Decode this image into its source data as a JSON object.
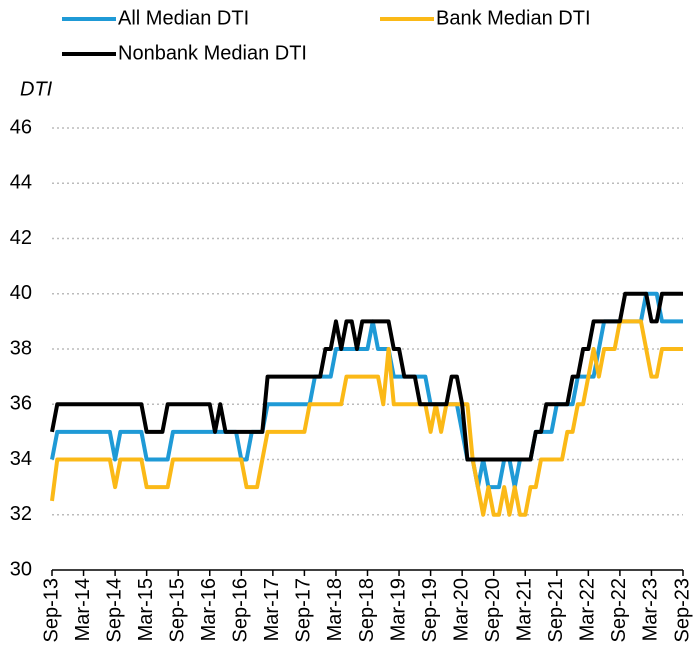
{
  "chart_data": {
    "type": "line",
    "y_axis_label": "DTI",
    "categories": [
      "Sep-13",
      null,
      null,
      null,
      null,
      null,
      "Mar-14",
      null,
      null,
      null,
      null,
      null,
      "Sep-14",
      null,
      null,
      null,
      null,
      null,
      "Mar-15",
      null,
      null,
      null,
      null,
      null,
      "Sep-15",
      null,
      null,
      null,
      null,
      null,
      "Mar-16",
      null,
      null,
      null,
      null,
      null,
      "Sep-16",
      null,
      null,
      null,
      null,
      null,
      "Mar-17",
      null,
      null,
      null,
      null,
      null,
      "Sep-17",
      null,
      null,
      null,
      null,
      null,
      "Mar-18",
      null,
      null,
      null,
      null,
      null,
      "Sep-18",
      null,
      null,
      null,
      null,
      null,
      "Mar-19",
      null,
      null,
      null,
      null,
      null,
      "Sep-19",
      null,
      null,
      null,
      null,
      null,
      "Mar-20",
      null,
      null,
      null,
      null,
      null,
      "Sep-20",
      null,
      null,
      null,
      null,
      null,
      "Mar-21",
      null,
      null,
      null,
      null,
      null,
      "Sep-21",
      null,
      null,
      null,
      null,
      null,
      "Mar-22",
      null,
      null,
      null,
      null,
      null,
      "Sep-22",
      null,
      null,
      null,
      null,
      null,
      "Mar-23",
      null,
      null,
      null,
      null,
      null,
      "Sep-23"
    ],
    "series": [
      {
        "name": "All Median DTI",
        "color": "#1f9ad6",
        "values": [
          34,
          35,
          35,
          35,
          35,
          35,
          35,
          35,
          35,
          35,
          35,
          35,
          34,
          35,
          35,
          35,
          35,
          35,
          34,
          34,
          34,
          34,
          34,
          35,
          35,
          35,
          35,
          35,
          35,
          35,
          35,
          35,
          35,
          35,
          35,
          35,
          34,
          34,
          35,
          35,
          35,
          36,
          36,
          36,
          36,
          36,
          36,
          36,
          36,
          36,
          37,
          37,
          37,
          37,
          38,
          38,
          38,
          38,
          38,
          38,
          38,
          39,
          38,
          38,
          38,
          37,
          37,
          37,
          37,
          37,
          37,
          37,
          36,
          36,
          36,
          36,
          36,
          36,
          35,
          34,
          34,
          33,
          34,
          33,
          33,
          33,
          34,
          34,
          33,
          34,
          34,
          34,
          35,
          35,
          35,
          35,
          36,
          36,
          36,
          36,
          37,
          37,
          37,
          37,
          38,
          39,
          39,
          39,
          39,
          39,
          39,
          39,
          39,
          40,
          40,
          40,
          39,
          39,
          39,
          39,
          39
        ]
      },
      {
        "name": "Bank Median DTI",
        "color": "#fbb917",
        "values": [
          32.5,
          34,
          34,
          34,
          34,
          34,
          34,
          34,
          34,
          34,
          34,
          34,
          33,
          34,
          34,
          34,
          34,
          34,
          33,
          33,
          33,
          33,
          33,
          34,
          34,
          34,
          34,
          34,
          34,
          34,
          34,
          34,
          34,
          34,
          34,
          34,
          34,
          33,
          33,
          33,
          34,
          35,
          35,
          35,
          35,
          35,
          35,
          35,
          35,
          36,
          36,
          36,
          36,
          36,
          36,
          36,
          37,
          37,
          37,
          37,
          37,
          37,
          37,
          36,
          38,
          36,
          36,
          36,
          36,
          36,
          36,
          36,
          35,
          36,
          35,
          36,
          36,
          36,
          36,
          36,
          34,
          33,
          32,
          33,
          32,
          32,
          33,
          32,
          33,
          32,
          32,
          33,
          33,
          34,
          34,
          34,
          34,
          34,
          35,
          35,
          36,
          36,
          37,
          38,
          37,
          38,
          38,
          38,
          39,
          39,
          39,
          39,
          39,
          38,
          37,
          37,
          38,
          38,
          38,
          38,
          38
        ]
      },
      {
        "name": "Nonbank Median DTI",
        "color": "#000000",
        "values": [
          35,
          36,
          36,
          36,
          36,
          36,
          36,
          36,
          36,
          36,
          36,
          36,
          36,
          36,
          36,
          36,
          36,
          36,
          35,
          35,
          35,
          35,
          36,
          36,
          36,
          36,
          36,
          36,
          36,
          36,
          36,
          35,
          36,
          35,
          35,
          35,
          35,
          35,
          35,
          35,
          35,
          37,
          37,
          37,
          37,
          37,
          37,
          37,
          37,
          37,
          37,
          37,
          38,
          38,
          39,
          38,
          39,
          39,
          38,
          39,
          39,
          39,
          39,
          39,
          39,
          38,
          38,
          37,
          37,
          37,
          36,
          36,
          36,
          36,
          36,
          36,
          37,
          37,
          36,
          34,
          34,
          34,
          34,
          34,
          34,
          34,
          34,
          34,
          34,
          34,
          34,
          34,
          35,
          35,
          36,
          36,
          36,
          36,
          36,
          37,
          37,
          38,
          38,
          39,
          39,
          39,
          39,
          39,
          39,
          40,
          40,
          40,
          40,
          40,
          39,
          39,
          40,
          40,
          40,
          40,
          40
        ]
      }
    ],
    "ylim": [
      30,
      46
    ],
    "yticks": [
      30,
      32,
      34,
      36,
      38,
      40,
      42,
      44,
      46
    ],
    "grid": true
  }
}
